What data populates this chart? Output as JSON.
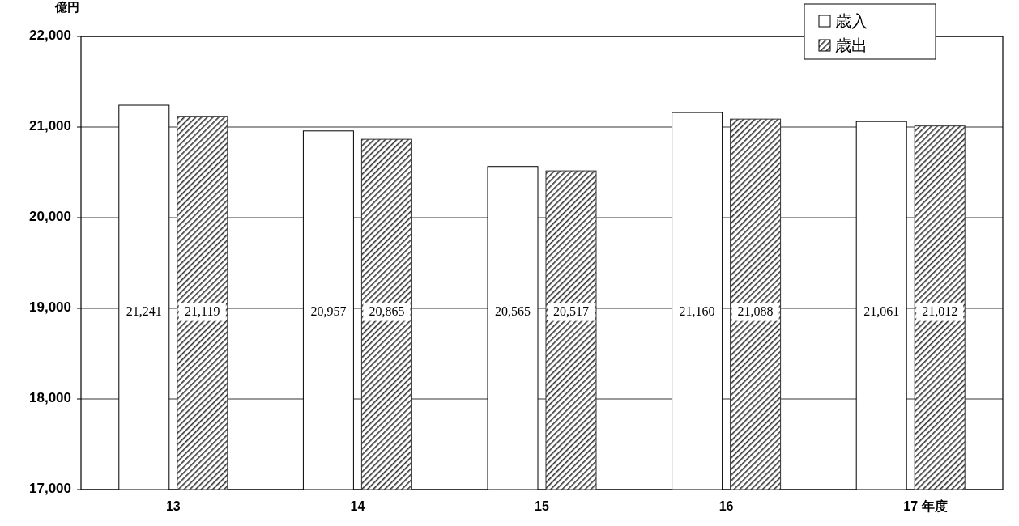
{
  "chart_data": {
    "type": "bar",
    "ylabel": "億円",
    "xlabel": "年度",
    "categories": [
      "13",
      "14",
      "15",
      "16",
      "17"
    ],
    "series": [
      {
        "name": "歳入",
        "color": "#ffffff",
        "values": [
          21241,
          20957,
          20565,
          21160,
          21061
        ],
        "value_labels": [
          "21,241",
          "20,957",
          "20,565",
          "21,160",
          "21,061"
        ]
      },
      {
        "name": "歳出",
        "color": "#333333",
        "values": [
          21119,
          20865,
          20517,
          21088,
          21012
        ],
        "value_labels": [
          "21,119",
          "20,865",
          "20,517",
          "21,088",
          "21,012"
        ]
      }
    ],
    "ylim": [
      17000,
      22000
    ],
    "yticks": [
      {
        "value": 17000,
        "label": "17,000"
      },
      {
        "value": 18000,
        "label": "18,000"
      },
      {
        "value": 19000,
        "label": "19,000"
      },
      {
        "value": 20000,
        "label": "20,000"
      },
      {
        "value": 21000,
        "label": "21,000"
      },
      {
        "value": 22000,
        "label": "22,000"
      }
    ],
    "grid": "y",
    "legend": "top right"
  }
}
